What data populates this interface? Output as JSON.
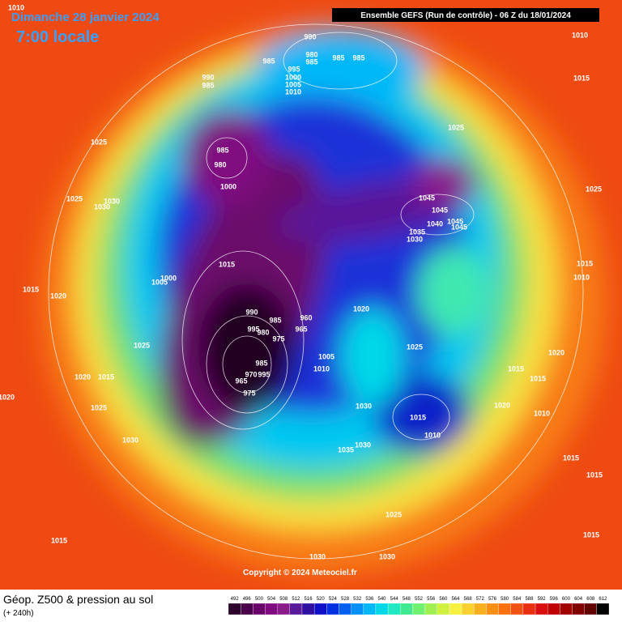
{
  "header": {
    "title": "Dimanche 28 janvier 2024",
    "time": "7:00 locale",
    "run": "Ensemble GEFS  (Run de contrôle)  -  06 Z du 18/01/2024"
  },
  "footer": {
    "title": "Géop. Z500 & pression au sol",
    "lead": "(+ 240h)",
    "copyright": "Copyright © 2024 Meteociel.fr"
  },
  "scale": {
    "values": [
      492,
      496,
      500,
      504,
      508,
      512,
      516,
      520,
      524,
      528,
      532,
      536,
      540,
      544,
      548,
      552,
      556,
      560,
      564,
      568,
      572,
      576,
      580,
      584,
      588,
      592,
      596,
      600,
      604,
      608,
      612
    ],
    "colors": [
      "#2b002b",
      "#4b004b",
      "#6a006a",
      "#7f0a7f",
      "#8a1a8a",
      "#5a189a",
      "#3010a0",
      "#1010c8",
      "#0030e0",
      "#0060f0",
      "#0090f8",
      "#00b8f8",
      "#00d8e8",
      "#20e8c0",
      "#40e890",
      "#70f070",
      "#a0f050",
      "#d0f040",
      "#f8f040",
      "#f8d030",
      "#f8b020",
      "#f89018",
      "#f87010",
      "#f05010",
      "#e83010",
      "#d81010",
      "#c00000",
      "#a00000",
      "#800000",
      "#600000",
      "#000000"
    ]
  },
  "pressure_labels": [
    "1010",
    "990",
    "985",
    "980",
    "985",
    "985",
    "985",
    "995",
    "1000",
    "1005",
    "1010",
    "990",
    "985",
    "1010",
    "1015",
    "1025",
    "985",
    "980",
    "1000",
    "1025",
    "1025",
    "1025",
    "1030",
    "1030",
    "1045",
    "1045",
    "1040",
    "1045",
    "1045",
    "1035",
    "1030",
    "1015",
    "1015",
    "1010",
    "1000",
    "1005",
    "1015",
    "1020",
    "990",
    "985",
    "1020",
    "995",
    "980",
    "975",
    "960",
    "965",
    "1025",
    "1025",
    "1005",
    "1010",
    "985",
    "970",
    "965",
    "995",
    "975",
    "1020",
    "1020",
    "1015",
    "1015",
    "1015",
    "1020",
    "1030",
    "1020",
    "1010",
    "1025",
    "1015",
    "1010",
    "1030",
    "1035",
    "1030",
    "1015",
    "1015",
    "1025",
    "1015",
    "1015",
    "1030",
    "1030"
  ]
}
